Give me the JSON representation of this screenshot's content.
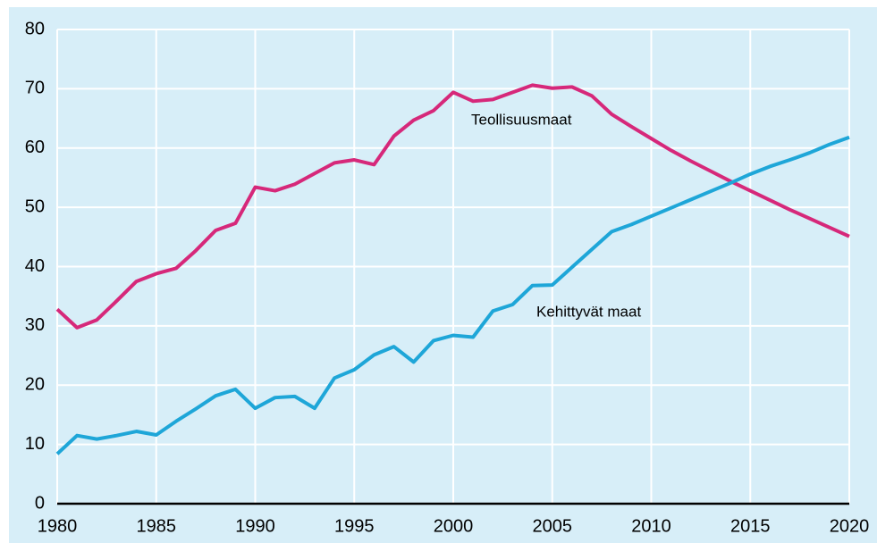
{
  "chart_data": {
    "type": "line",
    "x": [
      1980,
      1981,
      1982,
      1983,
      1984,
      1985,
      1986,
      1987,
      1988,
      1989,
      1990,
      1991,
      1992,
      1993,
      1994,
      1995,
      1996,
      1997,
      1998,
      1999,
      2000,
      2001,
      2002,
      2003,
      2004,
      2005,
      2006,
      2007,
      2008,
      2009,
      2010,
      2011,
      2012,
      2013,
      2014,
      2015,
      2016,
      2017,
      2018,
      2019,
      2020
    ],
    "series": [
      {
        "name": "Teollisuusmaat",
        "color": "#d6287a",
        "values": [
          32.8,
          29.7,
          31.0,
          34.2,
          37.5,
          38.8,
          39.7,
          42.7,
          46.1,
          47.3,
          53.4,
          52.8,
          53.9,
          55.7,
          57.5,
          58.0,
          57.2,
          62.0,
          64.7,
          66.3,
          69.4,
          67.9,
          68.2,
          69.4,
          70.6,
          70.1,
          70.3,
          68.8,
          65.7,
          63.6,
          61.6,
          59.6,
          57.8,
          56.1,
          54.4,
          52.8,
          51.2,
          49.6,
          48.1,
          46.6,
          45.1
        ]
      },
      {
        "name": "Kehittyvät maat",
        "color": "#1ea6d8",
        "values": [
          8.4,
          11.5,
          10.9,
          11.5,
          12.2,
          11.6,
          13.9,
          16.0,
          18.2,
          19.3,
          16.1,
          17.9,
          18.1,
          16.1,
          21.2,
          22.6,
          25.1,
          26.5,
          23.9,
          27.5,
          28.4,
          28.1,
          32.5,
          33.6,
          36.8,
          36.9,
          39.9,
          42.9,
          45.9,
          47.1,
          48.5,
          49.9,
          51.3,
          52.7,
          54.1,
          55.6,
          56.9,
          58.0,
          59.2,
          60.6,
          61.8
        ]
      }
    ],
    "xlim": [
      1980,
      2020
    ],
    "xticks": [
      1980,
      1985,
      1990,
      1995,
      2000,
      2005,
      2010,
      2015,
      2020
    ],
    "ylim": [
      0,
      80
    ],
    "yticks": [
      0,
      10,
      20,
      30,
      40,
      50,
      60,
      70,
      80
    ],
    "grid": true
  }
}
